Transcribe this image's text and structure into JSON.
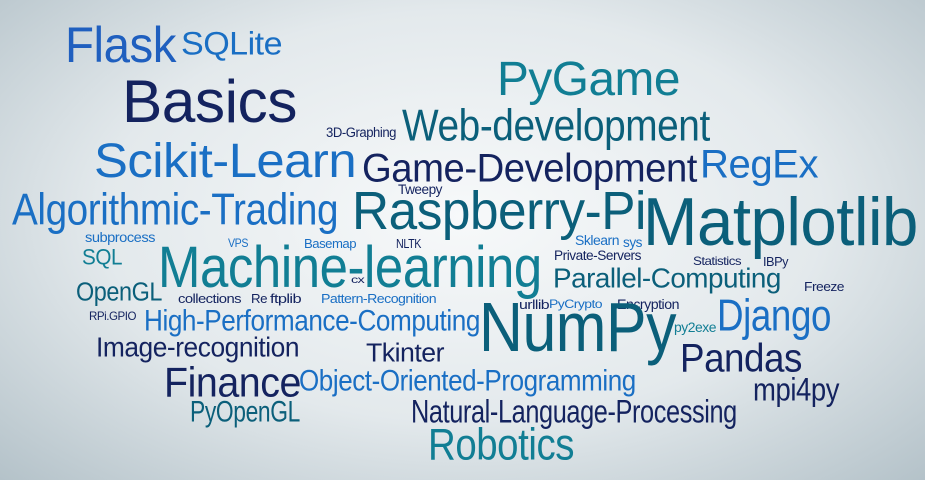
{
  "colors": {
    "blue": "#1f5fbf",
    "navy": "#14235f",
    "teal": "#117e94",
    "dark_teal": "#0b5f7a",
    "sky_blue": "#1a6fc4"
  },
  "words": {
    "flask": "Flask",
    "sqlite": "SQLite",
    "basics": "Basics",
    "pygame": "PyGame",
    "graphing3d": "3D-Graphing",
    "web_development": "Web-development",
    "scikit_learn": "Scikit-Learn",
    "game_development": "Game-Development",
    "regex": "RegEx",
    "tweepy": "Tweepy",
    "algorithmic_trading": "Algorithmic-Trading",
    "raspberry_pi": "Raspberry-Pi",
    "matplotlib": "Matplotlib",
    "subprocess": "subprocess",
    "vps": "VPS",
    "basemap": "Basemap",
    "nltk": "NLTK",
    "sklearn": "Sklearn",
    "sys": "sys",
    "sql": "SQL",
    "private_servers": "Private-Servers",
    "statistics": "Statistics",
    "ibpy": "IBPy",
    "machine_learning": "Machine-learning",
    "cx": "cx",
    "parallel_computing": "Parallel-Computing",
    "opengl": "OpenGL",
    "freeze": "Freeze",
    "collections": "collections",
    "re": "Re",
    "ftplib": "ftplib",
    "pattern_recognition": "Pattern-Recognition",
    "urllib": "urllib",
    "pycrypto": "PyCrypto",
    "encryption": "Encryption",
    "rpi_gpio": "RPi.GPIO",
    "high_performance_computing": "High-Performance-Computing",
    "numpy": "NumPy",
    "py2exe": "py2exe",
    "django": "Django",
    "image_recognition": "Image-recognition",
    "tkinter": "Tkinter",
    "pandas": "Pandas",
    "finance": "Finance",
    "object_oriented_programming": "Object-Oriented-Programming",
    "mpi4py": "mpi4py",
    "pyopengl": "PyOpenGL",
    "natural_language_processing": "Natural-Language-Processing",
    "robotics": "Robotics"
  }
}
